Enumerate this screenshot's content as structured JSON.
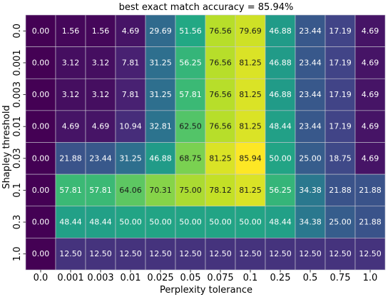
{
  "chart_data": {
    "type": "heatmap",
    "title": "best exact match accuracy = 85.94%",
    "xlabel": "Perplexity tolerance",
    "ylabel": "Shapley threshold",
    "x_categories": [
      "0.0",
      "0.001",
      "0.003",
      "0.01",
      "0.025",
      "0.05",
      "0.075",
      "0.1",
      "0.25",
      "0.5",
      "0.75",
      "1.0"
    ],
    "y_categories": [
      "0.0",
      "0.001",
      "0.003",
      "0.01",
      "0.03",
      "0.1",
      "0.3",
      "1.0"
    ],
    "values": [
      [
        0.0,
        1.56,
        1.56,
        4.69,
        29.69,
        51.56,
        76.56,
        79.69,
        46.88,
        23.44,
        17.19,
        4.69
      ],
      [
        0.0,
        3.12,
        3.12,
        7.81,
        31.25,
        56.25,
        76.56,
        81.25,
        46.88,
        23.44,
        17.19,
        4.69
      ],
      [
        0.0,
        3.12,
        3.12,
        7.81,
        31.25,
        57.81,
        76.56,
        81.25,
        46.88,
        23.44,
        17.19,
        4.69
      ],
      [
        0.0,
        4.69,
        4.69,
        10.94,
        32.81,
        62.5,
        76.56,
        81.25,
        48.44,
        23.44,
        17.19,
        4.69
      ],
      [
        0.0,
        21.88,
        23.44,
        31.25,
        46.88,
        68.75,
        81.25,
        85.94,
        50.0,
        25.0,
        18.75,
        4.69
      ],
      [
        0.0,
        57.81,
        57.81,
        64.06,
        70.31,
        75.0,
        78.12,
        81.25,
        56.25,
        34.38,
        21.88,
        21.88
      ],
      [
        0.0,
        48.44,
        48.44,
        50.0,
        50.0,
        50.0,
        50.0,
        50.0,
        48.44,
        34.38,
        25.0,
        21.88
      ],
      [
        0.0,
        12.5,
        12.5,
        12.5,
        12.5,
        12.5,
        12.5,
        12.5,
        12.5,
        12.5,
        12.5,
        12.5
      ]
    ],
    "colormap": "viridis",
    "value_range": [
      0,
      85.94
    ],
    "grid": true,
    "gridline_color": "#c8c8d2",
    "dark_text_color": "#1a1a1a",
    "light_text_color": "#ffffff"
  }
}
